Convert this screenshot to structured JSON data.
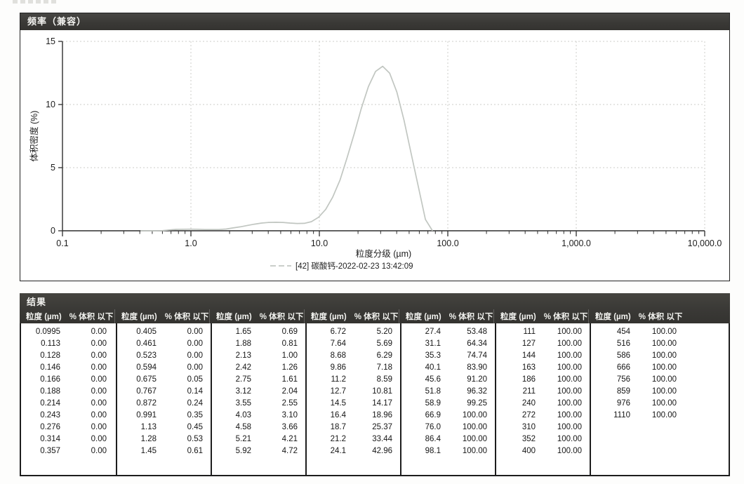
{
  "chart_panel": {
    "title": "频率（兼容）",
    "header_bg": "#3a3936"
  },
  "chart_data": {
    "type": "line",
    "title": "频率（兼容）",
    "xlabel": "粒度分级 (µm)",
    "ylabel": "体积密度 (%)",
    "x_scale": "log",
    "xlim": [
      0.1,
      10000
    ],
    "ylim": [
      0,
      15
    ],
    "y_ticks": [
      0,
      5,
      10,
      15
    ],
    "x_tick_labels": [
      "0.1",
      "1.0",
      "10.0",
      "100.0",
      "1,000.0",
      "10,000.0"
    ],
    "grid": true,
    "legend_position": "bottom",
    "series": [
      {
        "name": "[42] 碳酸钙-2022-02-23 13:42:09",
        "color": "#c1c6c1",
        "points": [
          [
            0.405,
            0
          ],
          [
            0.461,
            0
          ],
          [
            0.523,
            0
          ],
          [
            0.594,
            0.01
          ],
          [
            0.675,
            0.06
          ],
          [
            0.767,
            0.11
          ],
          [
            0.872,
            0.12
          ],
          [
            0.991,
            0.13
          ],
          [
            1.13,
            0.12
          ],
          [
            1.28,
            0.1
          ],
          [
            1.45,
            0.1
          ],
          [
            1.65,
            0.1
          ],
          [
            1.88,
            0.14
          ],
          [
            2.13,
            0.23
          ],
          [
            2.42,
            0.31
          ],
          [
            2.75,
            0.42
          ],
          [
            3.12,
            0.52
          ],
          [
            3.55,
            0.61
          ],
          [
            4.03,
            0.66
          ],
          [
            4.58,
            0.67
          ],
          [
            5.21,
            0.66
          ],
          [
            5.92,
            0.61
          ],
          [
            6.72,
            0.58
          ],
          [
            7.64,
            0.59
          ],
          [
            8.68,
            0.72
          ],
          [
            9.86,
            1.07
          ],
          [
            11.2,
            1.69
          ],
          [
            12.7,
            2.66
          ],
          [
            14.5,
            4.03
          ],
          [
            16.4,
            5.75
          ],
          [
            18.7,
            7.69
          ],
          [
            21.2,
            9.68
          ],
          [
            24.1,
            11.42
          ],
          [
            27.4,
            12.62
          ],
          [
            31.1,
            13.03
          ],
          [
            35.3,
            12.48
          ],
          [
            40.1,
            10.99
          ],
          [
            45.6,
            8.76
          ],
          [
            51.8,
            6.14
          ],
          [
            58.9,
            3.52
          ],
          [
            66.9,
            0.9
          ],
          [
            76.0,
            0
          ]
        ]
      }
    ]
  },
  "table": {
    "title": "结果",
    "size_header": "粒度 (µm)",
    "percent_header": "% 体积 以下",
    "groups": [
      [
        [
          "0.0995",
          "0.00"
        ],
        [
          "0.113",
          "0.00"
        ],
        [
          "0.128",
          "0.00"
        ],
        [
          "0.146",
          "0.00"
        ],
        [
          "0.166",
          "0.00"
        ],
        [
          "0.188",
          "0.00"
        ],
        [
          "0.214",
          "0.00"
        ],
        [
          "0.243",
          "0.00"
        ],
        [
          "0.276",
          "0.00"
        ],
        [
          "0.314",
          "0.00"
        ],
        [
          "0.357",
          "0.00"
        ]
      ],
      [
        [
          "0.405",
          "0.00"
        ],
        [
          "0.461",
          "0.00"
        ],
        [
          "0.523",
          "0.00"
        ],
        [
          "0.594",
          "0.00"
        ],
        [
          "0.675",
          "0.05"
        ],
        [
          "0.767",
          "0.14"
        ],
        [
          "0.872",
          "0.24"
        ],
        [
          "0.991",
          "0.35"
        ],
        [
          "1.13",
          "0.45"
        ],
        [
          "1.28",
          "0.53"
        ],
        [
          "1.45",
          "0.61"
        ]
      ],
      [
        [
          "1.65",
          "0.69"
        ],
        [
          "1.88",
          "0.81"
        ],
        [
          "2.13",
          "1.00"
        ],
        [
          "2.42",
          "1.26"
        ],
        [
          "2.75",
          "1.61"
        ],
        [
          "3.12",
          "2.04"
        ],
        [
          "3.55",
          "2.55"
        ],
        [
          "4.03",
          "3.10"
        ],
        [
          "4.58",
          "3.66"
        ],
        [
          "5.21",
          "4.21"
        ],
        [
          "5.92",
          "4.72"
        ]
      ],
      [
        [
          "6.72",
          "5.20"
        ],
        [
          "7.64",
          "5.69"
        ],
        [
          "8.68",
          "6.29"
        ],
        [
          "9.86",
          "7.18"
        ],
        [
          "11.2",
          "8.59"
        ],
        [
          "12.7",
          "10.81"
        ],
        [
          "14.5",
          "14.17"
        ],
        [
          "16.4",
          "18.96"
        ],
        [
          "18.7",
          "25.37"
        ],
        [
          "21.2",
          "33.44"
        ],
        [
          "24.1",
          "42.96"
        ]
      ],
      [
        [
          "27.4",
          "53.48"
        ],
        [
          "31.1",
          "64.34"
        ],
        [
          "35.3",
          "74.74"
        ],
        [
          "40.1",
          "83.90"
        ],
        [
          "45.6",
          "91.20"
        ],
        [
          "51.8",
          "96.32"
        ],
        [
          "58.9",
          "99.25"
        ],
        [
          "66.9",
          "100.00"
        ],
        [
          "76.0",
          "100.00"
        ],
        [
          "86.4",
          "100.00"
        ],
        [
          "98.1",
          "100.00"
        ]
      ],
      [
        [
          "111",
          "100.00"
        ],
        [
          "127",
          "100.00"
        ],
        [
          "144",
          "100.00"
        ],
        [
          "163",
          "100.00"
        ],
        [
          "186",
          "100.00"
        ],
        [
          "211",
          "100.00"
        ],
        [
          "240",
          "100.00"
        ],
        [
          "272",
          "100.00"
        ],
        [
          "310",
          "100.00"
        ],
        [
          "352",
          "100.00"
        ],
        [
          "400",
          "100.00"
        ]
      ],
      [
        [
          "454",
          "100.00"
        ],
        [
          "516",
          "100.00"
        ],
        [
          "586",
          "100.00"
        ],
        [
          "666",
          "100.00"
        ],
        [
          "756",
          "100.00"
        ],
        [
          "859",
          "100.00"
        ],
        [
          "976",
          "100.00"
        ],
        [
          "1110",
          "100.00"
        ]
      ]
    ]
  }
}
